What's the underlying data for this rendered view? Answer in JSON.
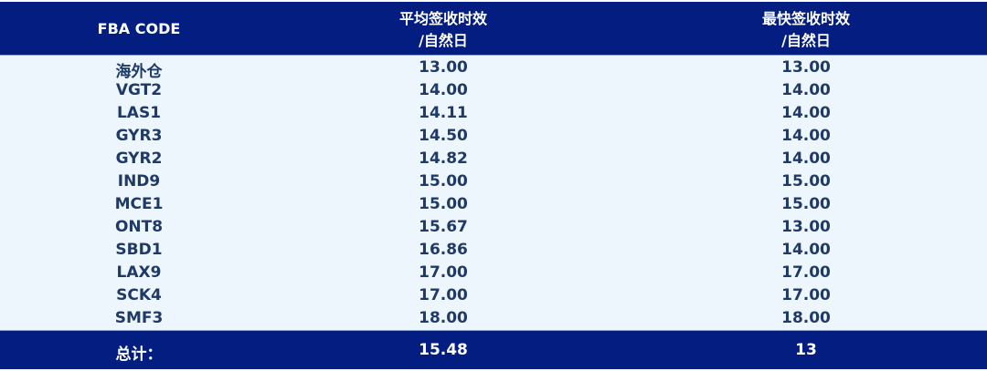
{
  "table": {
    "headers": [
      "FBA CODE",
      "平均签收时效\n/自然日",
      "最快签收时效\n/自然日"
    ],
    "header_lines": [
      [
        "FBA CODE"
      ],
      [
        "平均签收时效",
        "/自然日"
      ],
      [
        "最快签收时效",
        "/自然日"
      ]
    ],
    "rows": [
      [
        "海外仓",
        "13.00",
        "13.00"
      ],
      [
        "VGT2",
        "14.00",
        "14.00"
      ],
      [
        "LAS1",
        "14.11",
        "14.00"
      ],
      [
        "GYR3",
        "14.50",
        "14.00"
      ],
      [
        "GYR2",
        "14.82",
        "14.00"
      ],
      [
        "IND9",
        "15.00",
        "15.00"
      ],
      [
        "MCE1",
        "15.00",
        "15.00"
      ],
      [
        "ONT8",
        "15.67",
        "13.00"
      ],
      [
        "SBD1",
        "16.86",
        "14.00"
      ],
      [
        "LAX9",
        "17.00",
        "17.00"
      ],
      [
        "SCK4",
        "17.00",
        "17.00"
      ],
      [
        "SMF3",
        "18.00",
        "18.00"
      ]
    ],
    "footer": [
      "总计：",
      "15.48",
      "13"
    ]
  },
  "colors": {
    "header_bg": "#031e80",
    "body_bg": "#eef6fd",
    "text": "#1f3a66"
  }
}
